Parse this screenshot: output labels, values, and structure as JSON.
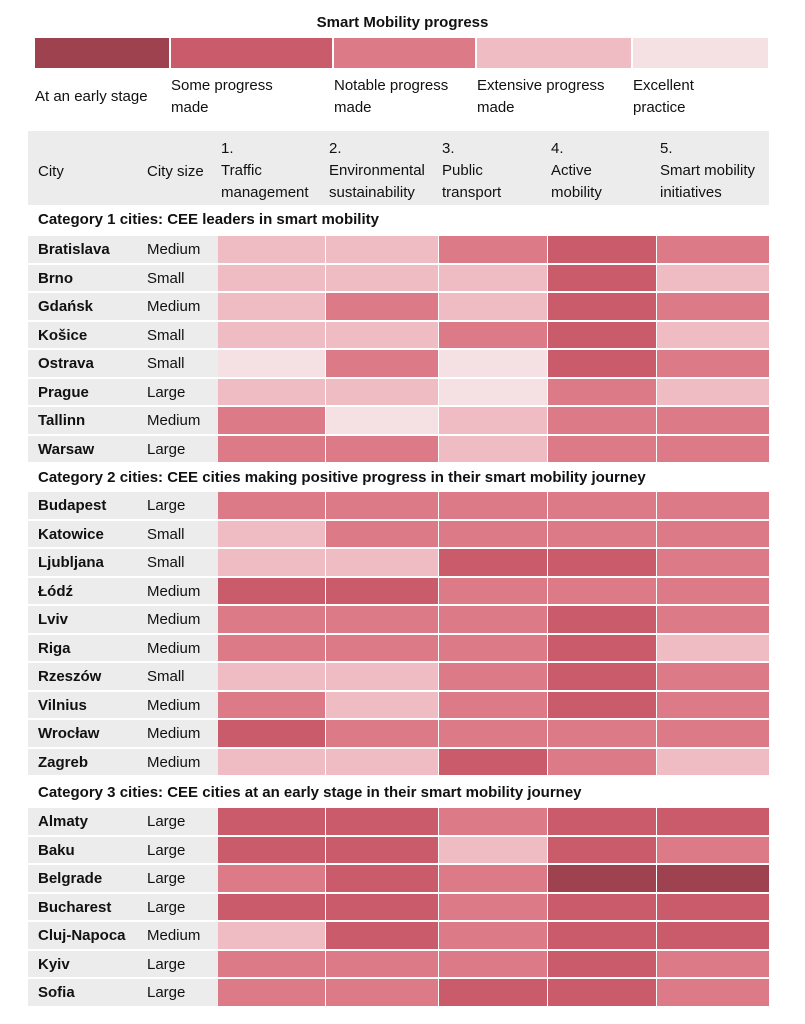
{
  "title": "Smart Mobility progress",
  "colors": {
    "level1": "#9e4250",
    "level2": "#c95b6b",
    "level3": "#dc7a88",
    "level4": "#efbcc4",
    "level5": "#f5e0e4",
    "row_label_bg": "#ececec"
  },
  "legend": [
    {
      "label": "At an early stage",
      "level": 1
    },
    {
      "label": "Some progress\nmade",
      "level": 2
    },
    {
      "label": "Notable progress\nmade",
      "level": 3
    },
    {
      "label": "Extensive progress\nmade",
      "level": 4
    },
    {
      "label": "Excellent\npractice",
      "level": 5
    }
  ],
  "header": {
    "city": "City",
    "city_size": "City size",
    "columns": [
      "1.\nTraffic\nmanagement",
      "2.\nEnvironmental\nsustainability",
      "3.\nPublic\ntransport",
      "4.\nActive\nmobility",
      "5.\nSmart mobility\ninitiatives"
    ]
  },
  "chart_data": {
    "type": "heatmap",
    "title": "Smart Mobility progress",
    "scale": [
      "At an early stage",
      "Some progress made",
      "Notable progress made",
      "Extensive progress made",
      "Excellent practice"
    ],
    "columns": [
      "Traffic management",
      "Environmental sustainability",
      "Public transport",
      "Active mobility",
      "Smart mobility initiatives"
    ],
    "categories": [
      {
        "title": "Category 1 cities: CEE leaders in smart mobility",
        "rows": [
          {
            "city": "Bratislava",
            "size": "Medium",
            "values": [
              4,
              4,
              3,
              2,
              3
            ]
          },
          {
            "city": "Brno",
            "size": "Small",
            "values": [
              4,
              4,
              4,
              2,
              4
            ]
          },
          {
            "city": "Gdańsk",
            "size": "Medium",
            "values": [
              4,
              3,
              4,
              2,
              3
            ]
          },
          {
            "city": "Košice",
            "size": "Small",
            "values": [
              4,
              4,
              3,
              2,
              4
            ]
          },
          {
            "city": "Ostrava",
            "size": "Small",
            "values": [
              5,
              3,
              5,
              2,
              3
            ]
          },
          {
            "city": "Prague",
            "size": "Large",
            "values": [
              4,
              4,
              5,
              3,
              4
            ]
          },
          {
            "city": "Tallinn",
            "size": "Medium",
            "values": [
              3,
              5,
              4,
              3,
              3
            ]
          },
          {
            "city": "Warsaw",
            "size": "Large",
            "values": [
              3,
              3,
              4,
              3,
              3
            ]
          }
        ]
      },
      {
        "title": "Category 2 cities: CEE cities making positive progress in their smart mobility journey",
        "rows": [
          {
            "city": "Budapest",
            "size": "Large",
            "values": [
              3,
              3,
              3,
              3,
              3
            ]
          },
          {
            "city": "Katowice",
            "size": "Small",
            "values": [
              4,
              3,
              3,
              3,
              3
            ]
          },
          {
            "city": "Ljubljana",
            "size": "Small",
            "values": [
              4,
              4,
              2,
              2,
              3
            ]
          },
          {
            "city": "Łódź",
            "size": "Medium",
            "values": [
              2,
              2,
              3,
              3,
              3
            ]
          },
          {
            "city": "Lviv",
            "size": "Medium",
            "values": [
              3,
              3,
              3,
              2,
              3
            ]
          },
          {
            "city": "Riga",
            "size": "Medium",
            "values": [
              3,
              3,
              3,
              2,
              4
            ]
          },
          {
            "city": "Rzeszów",
            "size": "Small",
            "values": [
              4,
              4,
              3,
              2,
              3
            ]
          },
          {
            "city": "Vilnius",
            "size": "Medium",
            "values": [
              3,
              4,
              3,
              2,
              3
            ]
          },
          {
            "city": "Wrocław",
            "size": "Medium",
            "values": [
              2,
              3,
              3,
              3,
              3
            ]
          },
          {
            "city": "Zagreb",
            "size": "Medium",
            "values": [
              4,
              4,
              2,
              3,
              4
            ]
          }
        ]
      },
      {
        "title": "Category 3 cities: CEE cities at an early stage in their smart mobility journey",
        "rows": [
          {
            "city": "Almaty",
            "size": "Large",
            "values": [
              2,
              2,
              3,
              2,
              2
            ]
          },
          {
            "city": "Baku",
            "size": "Large",
            "values": [
              2,
              2,
              4,
              2,
              3
            ]
          },
          {
            "city": "Belgrade",
            "size": "Large",
            "values": [
              3,
              2,
              3,
              1,
              1
            ]
          },
          {
            "city": "Bucharest",
            "size": "Large",
            "values": [
              2,
              2,
              3,
              2,
              2
            ]
          },
          {
            "city": "Cluj-Napoca",
            "size": "Medium",
            "values": [
              4,
              2,
              3,
              2,
              2
            ]
          },
          {
            "city": "Kyiv",
            "size": "Large",
            "values": [
              3,
              3,
              3,
              2,
              3
            ]
          },
          {
            "city": "Sofia",
            "size": "Large",
            "values": [
              3,
              3,
              2,
              2,
              3
            ]
          }
        ]
      }
    ]
  }
}
